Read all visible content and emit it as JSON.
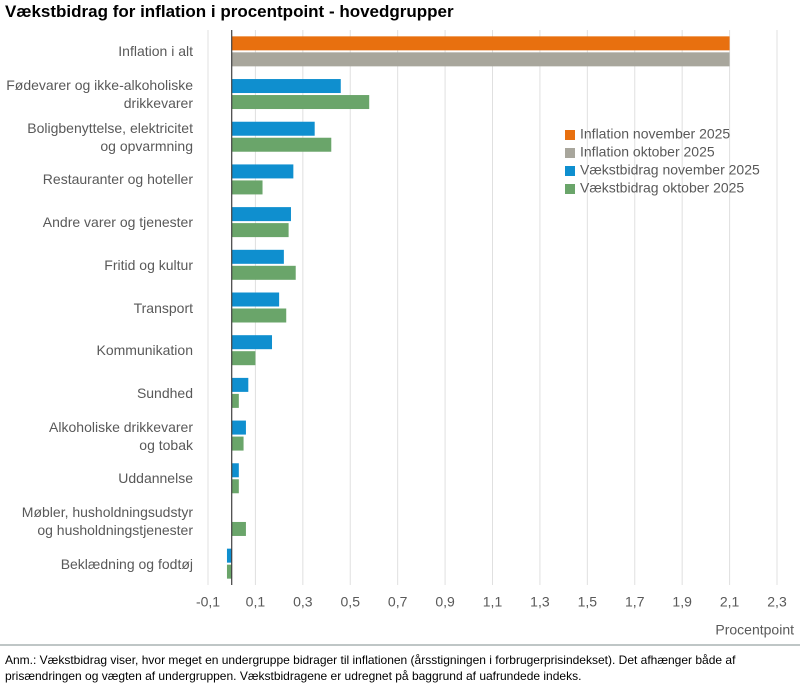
{
  "chart_data": {
    "type": "hbar",
    "title": "Vækstbidrag for inflation i procentpoint - hovedgrupper",
    "x_label": "Procentpoint",
    "note": "Anm.: Vækstbidrag viser, hvor meget en undergruppe bidrager til inflationen (årsstigningen i forbrugerprisindekset). Det afhænger både af prisændringen og vægten af undergruppen. Vækstbidragene er udregnet på baggrund af uafrundede indeks.",
    "categories": [
      "Inflation i alt",
      "Fødevarer og ikke-alkoholiske\ndrikkevarer",
      "Boligbenyttelse, elektricitet\nog opvarmning",
      "Restauranter og hoteller",
      "Andre varer og tjenester",
      "Fritid og kultur",
      "Transport",
      "Kommunikation",
      "Sundhed",
      "Alkoholiske drikkevarer\nog tobak",
      "Uddannelse",
      "Møbler, husholdningsudstyr\nog husholdningstjenester",
      "Beklædning og fodtøj"
    ],
    "series": [
      {
        "name": "Inflation november 2025",
        "color": "#e8700f",
        "slot": 0,
        "values": [
          2.1,
          null,
          null,
          null,
          null,
          null,
          null,
          null,
          null,
          null,
          null,
          null,
          null
        ]
      },
      {
        "name": "Inflation oktober 2025",
        "color": "#a8a69c",
        "slot": 1,
        "values": [
          2.1,
          null,
          null,
          null,
          null,
          null,
          null,
          null,
          null,
          null,
          null,
          null,
          null
        ]
      },
      {
        "name": "Vækstbidrag november 2025",
        "color": "#0f8fcf",
        "slot": 0,
        "values": [
          null,
          0.46,
          0.35,
          0.26,
          0.25,
          0.22,
          0.2,
          0.17,
          0.07,
          0.06,
          0.03,
          0,
          -0.02
        ]
      },
      {
        "name": "Vækstbidrag oktober 2025",
        "color": "#6aa56a",
        "slot": 1,
        "values": [
          null,
          0.58,
          0.42,
          0.13,
          0.24,
          0.27,
          0.23,
          0.1,
          0.03,
          0.05,
          0.03,
          0.06,
          -0.02
        ]
      }
    ],
    "xlim": [
      -0.1,
      2.3
    ],
    "xticks": [
      {
        "value": -0.1,
        "label": "-0,1"
      },
      {
        "value": 0.1,
        "label": "0,1"
      },
      {
        "value": 0.3,
        "label": "0,3"
      },
      {
        "value": 0.5,
        "label": "0,5"
      },
      {
        "value": 0.7,
        "label": "0,7"
      },
      {
        "value": 0.9,
        "label": "0,9"
      },
      {
        "value": 1.1,
        "label": "1,1"
      },
      {
        "value": 1.3,
        "label": "1,3"
      },
      {
        "value": 1.5,
        "label": "1,5"
      },
      {
        "value": 1.7,
        "label": "1,7"
      },
      {
        "value": 1.9,
        "label": "1,9"
      },
      {
        "value": 2.1,
        "label": "2,1"
      },
      {
        "value": 2.3,
        "label": "2,3"
      }
    ],
    "grid": true
  }
}
